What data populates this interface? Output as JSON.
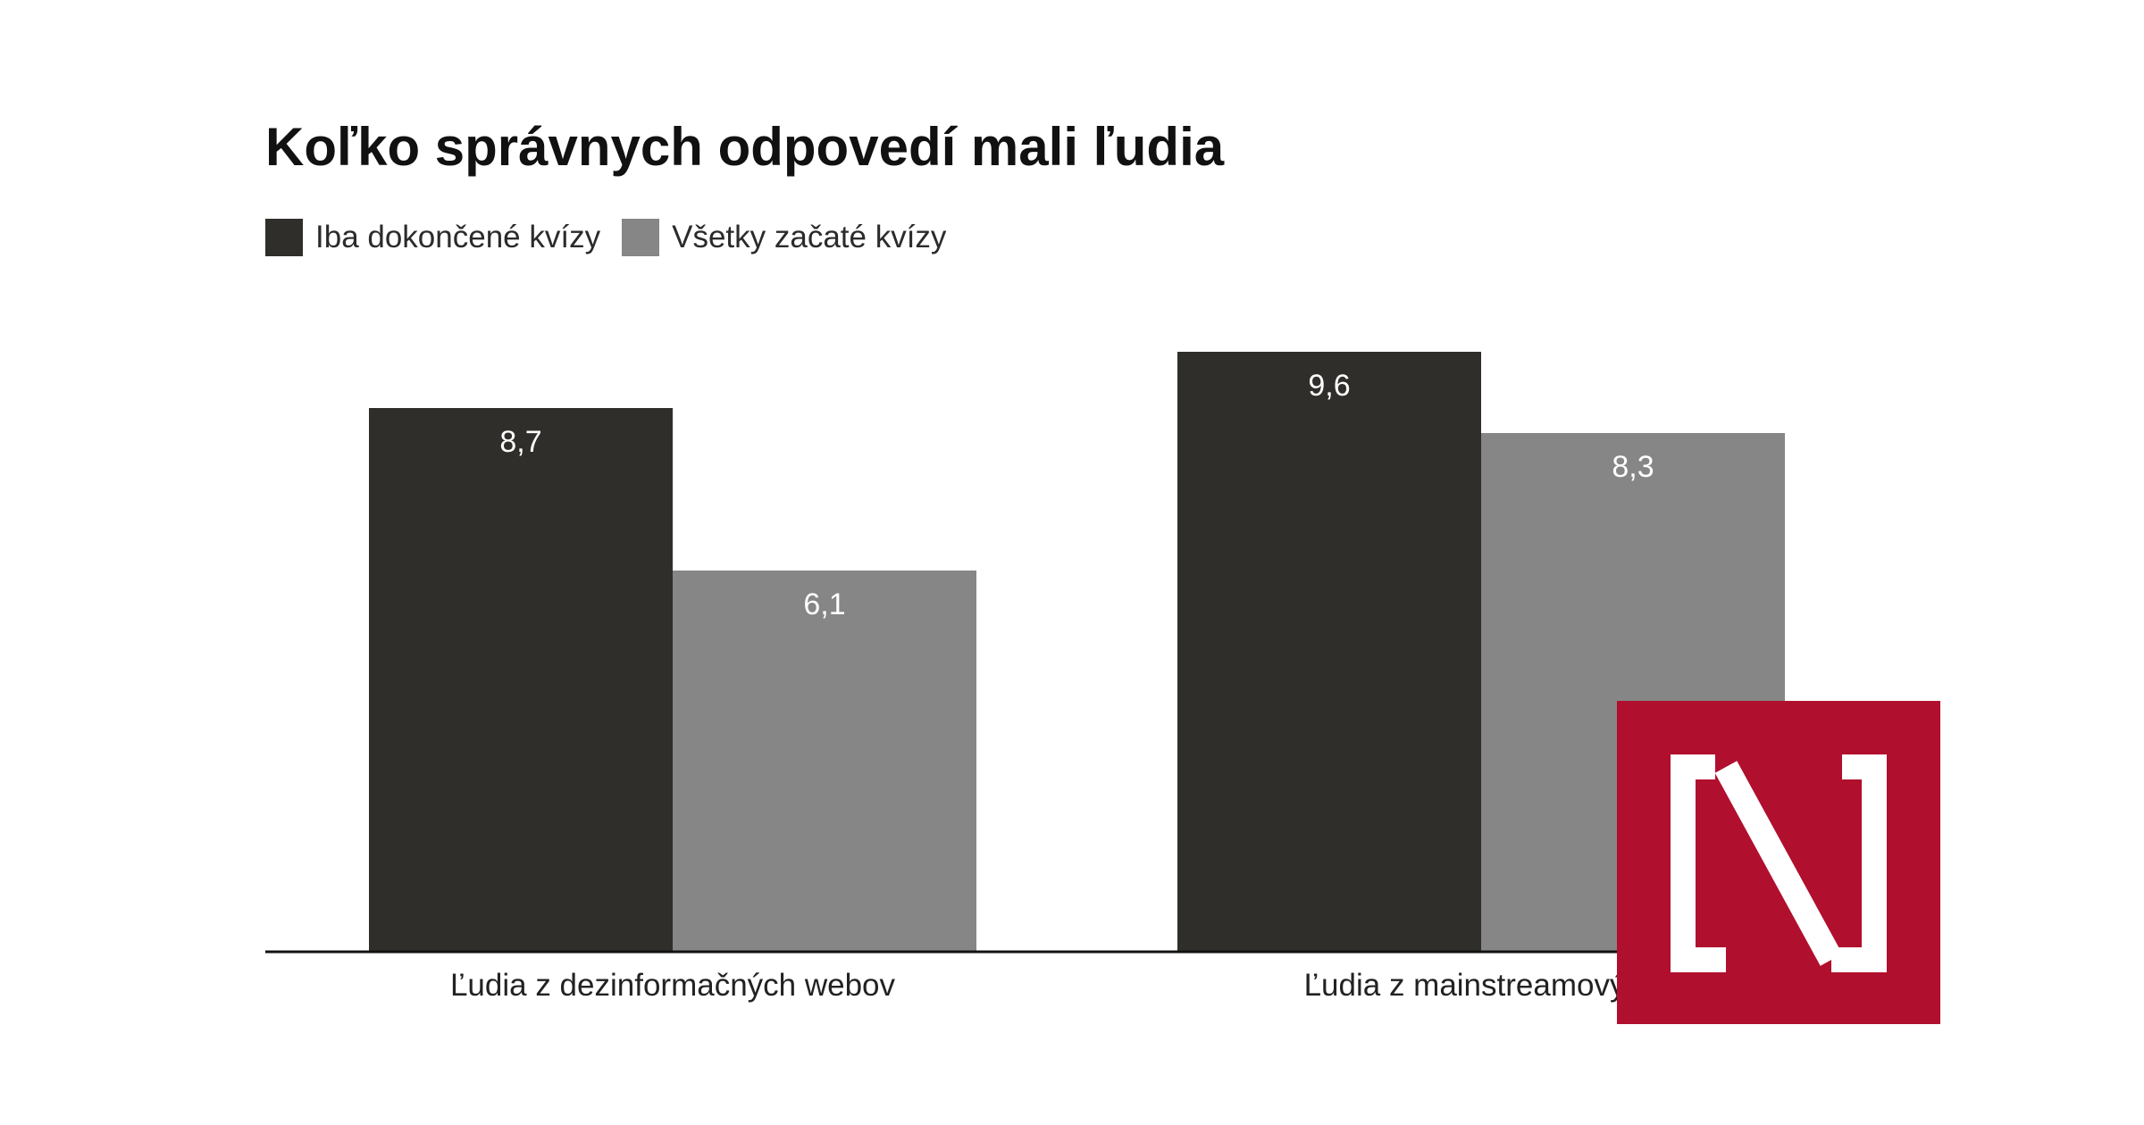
{
  "chart_data": {
    "type": "bar",
    "title": "Koľko správnych odpovedí mali ľudia",
    "categories": [
      "Ľudia z dezinformačných webov",
      "Ľudia z mainstreamových"
    ],
    "series": [
      {
        "name": "Iba dokončené kvízy",
        "values": [
          8.7,
          9.6
        ],
        "labels": [
          "8,7",
          "9,6"
        ],
        "color": "#2f2e2b"
      },
      {
        "name": "Všetky začaté kvízy",
        "values": [
          6.1,
          8.3
        ],
        "labels": [
          "6,1",
          "8,3"
        ],
        "color": "#868686"
      }
    ],
    "ylim": [
      0,
      10
    ],
    "grid": false,
    "legend": "top-left"
  },
  "colors": {
    "axis": "#111111",
    "value_label": "#ffffff",
    "category_label": "#222222",
    "logo_red": "#b10f2e",
    "logo_white": "#ffffff"
  },
  "logo": {
    "icon": "n-logo-icon"
  }
}
